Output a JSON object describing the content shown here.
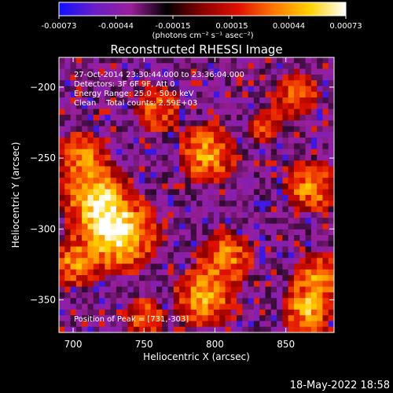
{
  "colorbar": {
    "ticks": [
      "-0.00073",
      "-0.00044",
      "-0.00015",
      "0.00015",
      "0.00044",
      "0.00073"
    ],
    "tick_values": [
      -0.00073,
      -0.00044,
      -0.00015,
      0.00015,
      0.00044,
      0.00073
    ],
    "units_label": "(photons cm⁻² s⁻¹ asec⁻²)",
    "range": [
      -0.00073,
      0.00073
    ],
    "colors": [
      "#1010ff",
      "#6a1ec8",
      "#9a1f9a",
      "#000000",
      "#8a0000",
      "#e01000",
      "#ff7800",
      "#ffd200",
      "#ffffff"
    ]
  },
  "chart_data": {
    "type": "heatmap",
    "title": "Reconstructed RHESSI Image",
    "xlabel": "Heliocentric X (arcsec)",
    "ylabel": "Heliocentric Y (arcsec)",
    "xlim": [
      690,
      884
    ],
    "ylim": [
      -373,
      -179
    ],
    "x_ticks": [
      700,
      750,
      800,
      850
    ],
    "y_ticks": [
      -200,
      -250,
      -300,
      -350
    ],
    "x_tick_labels": [
      "700",
      "750",
      "800",
      "850"
    ],
    "y_tick_labels": [
      "−200",
      "−250",
      "−300",
      "−350"
    ],
    "grid": false,
    "info_lines": [
      "27-Oct-2014 23:30:44.000 to 23:36:04.000",
      "Detectors: 3F 6F 9F, Att 0",
      "Energy Range: 25.0 - 50.0 keV",
      "Clean    Total counts: 2.59E+03"
    ],
    "peak_label": "Position of Peak = [731,-303]",
    "peak": [
      731,
      -303
    ],
    "sources": [
      {
        "x": 731,
        "y": -303,
        "strength": 1.0,
        "sigma": 15
      },
      {
        "x": 716,
        "y": -278,
        "strength": 0.8,
        "sigma": 13
      },
      {
        "x": 706,
        "y": -248,
        "strength": 0.55,
        "sigma": 10
      },
      {
        "x": 700,
        "y": -325,
        "strength": 0.55,
        "sigma": 10
      },
      {
        "x": 760,
        "y": -215,
        "strength": 0.45,
        "sigma": 10
      },
      {
        "x": 795,
        "y": -247,
        "strength": 0.65,
        "sigma": 12
      },
      {
        "x": 808,
        "y": -320,
        "strength": 0.55,
        "sigma": 11
      },
      {
        "x": 793,
        "y": -348,
        "strength": 0.7,
        "sigma": 12
      },
      {
        "x": 868,
        "y": -270,
        "strength": 0.6,
        "sigma": 11
      },
      {
        "x": 873,
        "y": -335,
        "strength": 0.55,
        "sigma": 11
      },
      {
        "x": 865,
        "y": -358,
        "strength": 0.65,
        "sigma": 10
      },
      {
        "x": 858,
        "y": -205,
        "strength": 0.45,
        "sigma": 10
      },
      {
        "x": 835,
        "y": -228,
        "strength": 0.3,
        "sigma": 8
      },
      {
        "x": 750,
        "y": -362,
        "strength": 0.4,
        "sigma": 9
      }
    ]
  },
  "footer": {
    "timestamp": "18-May-2022 18:58"
  }
}
